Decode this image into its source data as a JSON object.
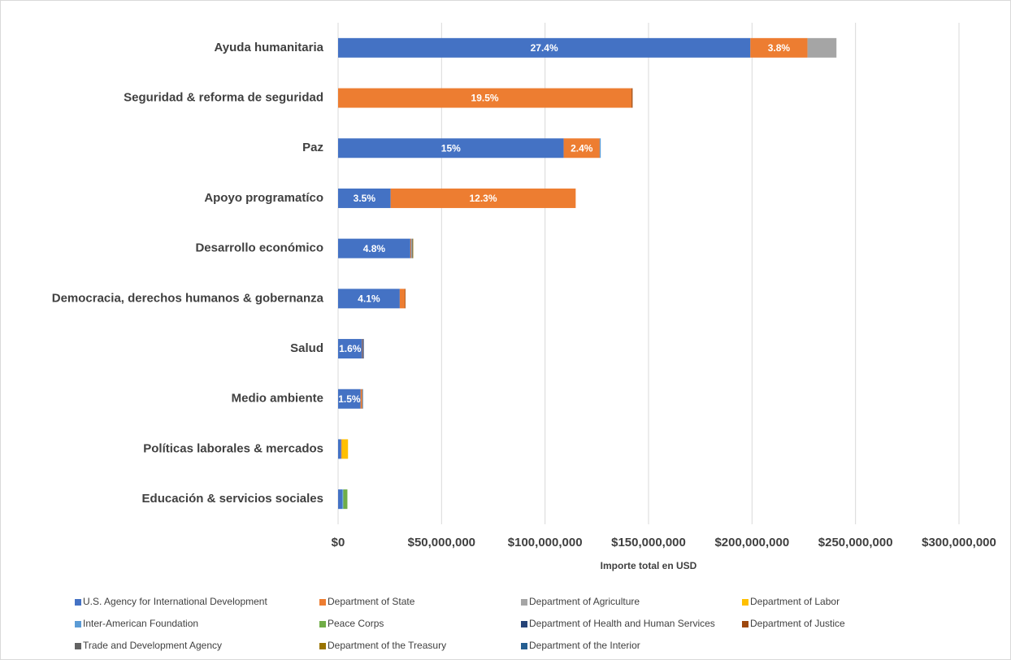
{
  "chart_data": {
    "type": "stacked_bar_horizontal",
    "categories": [
      "Ayuda humanitaria",
      "Seguridad & reforma de seguridad",
      "Paz",
      "Apoyo programatíco",
      "Desarrollo económico",
      "Democracia, derechos humanos & gobernanza",
      "Salud",
      "Medio ambiente",
      "Políticas laborales & mercados",
      "Educación & servicios sociales"
    ],
    "series": [
      {
        "name": "U.S. Agency for International Development",
        "color": "#4472c4",
        "values": [
          199200000,
          0,
          109000000,
          25400000,
          34900000,
          29800000,
          11600000,
          10900000,
          1500000,
          2000000
        ],
        "share_labels": [
          "27.4%",
          null,
          "15%",
          "3.5%",
          "4.8%",
          "4.1%",
          "1.6%",
          "1.5%",
          null,
          null
        ]
      },
      {
        "name": "Department of State",
        "color": "#ed7d31",
        "values": [
          27600000,
          141800000,
          17400000,
          89400000,
          500000,
          2500000,
          300000,
          800000,
          300000,
          0
        ],
        "share_labels": [
          "3.8%",
          "19.5%",
          "2.4%",
          "12.3%",
          null,
          null,
          null,
          null,
          null,
          null
        ]
      },
      {
        "name": "Department of Agriculture",
        "color": "#a5a5a5",
        "values": [
          14000000,
          0,
          0,
          0,
          0,
          0,
          0,
          0,
          0,
          0
        ]
      },
      {
        "name": "Department of Labor",
        "color": "#ffc000",
        "values": [
          0,
          0,
          0,
          0,
          0,
          0,
          0,
          0,
          3000000,
          0
        ]
      },
      {
        "name": "Inter-American Foundation",
        "color": "#5b9bd5",
        "values": [
          0,
          0,
          500000,
          0,
          300000,
          0,
          0,
          0,
          0,
          500000
        ]
      },
      {
        "name": "Peace Corps",
        "color": "#70ad47",
        "values": [
          0,
          0,
          0,
          0,
          0,
          0,
          0,
          0,
          0,
          2000000
        ]
      },
      {
        "name": "Department of Health and Human Services",
        "color": "#264478",
        "values": [
          0,
          0,
          0,
          0,
          0,
          0,
          500000,
          0,
          0,
          0
        ]
      },
      {
        "name": "Department of Justice",
        "color": "#9e480e",
        "values": [
          0,
          500000,
          0,
          0,
          0,
          300000,
          0,
          0,
          0,
          0
        ]
      },
      {
        "name": "Trade and Development Agency",
        "color": "#636363",
        "values": [
          0,
          0,
          0,
          0,
          300000,
          0,
          0,
          0,
          0,
          0
        ]
      },
      {
        "name": "Department of the Treasury",
        "color": "#997300",
        "values": [
          0,
          0,
          0,
          0,
          300000,
          0,
          0,
          0,
          0,
          0
        ]
      },
      {
        "name": "Department of the Interior",
        "color": "#255e91",
        "values": [
          0,
          0,
          0,
          0,
          0,
          0,
          0,
          300000,
          0,
          0
        ]
      }
    ],
    "x_label": "Importe total en USD",
    "xlim": [
      0,
      300000000
    ],
    "xticks": [
      {
        "value": 0,
        "label": "$0"
      },
      {
        "value": 50000000,
        "label": "$50,000,000"
      },
      {
        "value": 100000000,
        "label": "$100,000,000"
      },
      {
        "value": 150000000,
        "label": "$150,000,000"
      },
      {
        "value": 200000000,
        "label": "$200,000,000"
      },
      {
        "value": 250000000,
        "label": "$250,000,000"
      },
      {
        "value": 300000000,
        "label": "$300,000,000"
      }
    ],
    "grid": true,
    "legend": "bottom"
  }
}
